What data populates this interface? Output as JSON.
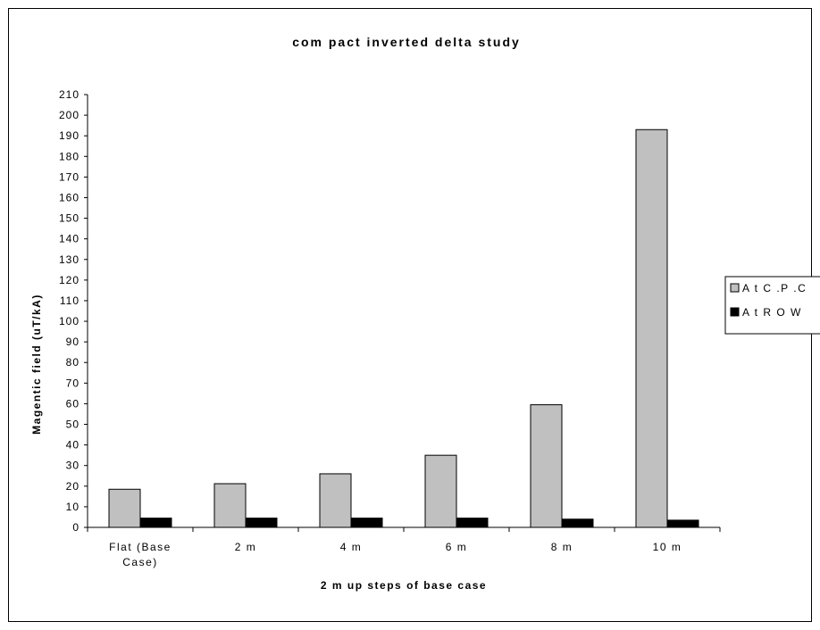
{
  "chart_data": {
    "type": "bar",
    "title": "com pact inverted delta study",
    "xlabel": "2 m up steps of base case",
    "ylabel": "Magentic field (uT/kA)",
    "categories": [
      "Flat (Base Case)",
      "2 m",
      "4 m",
      "6 m",
      "8 m",
      "10 m"
    ],
    "category_lines": [
      [
        "Flat (Base",
        "Case)"
      ],
      [
        "2 m"
      ],
      [
        "4 m"
      ],
      [
        "6 m"
      ],
      [
        "8 m"
      ],
      [
        "10 m"
      ]
    ],
    "ylim": [
      0,
      210
    ],
    "ytick_step": 10,
    "grid": false,
    "legend_position": "right",
    "series": [
      {
        "name": "A t C .P .C",
        "color": "#c0c0c0",
        "values": [
          18.5,
          21.2,
          26,
          35,
          59.5,
          193
        ]
      },
      {
        "name": "A t R O W",
        "color": "#000000",
        "values": [
          4.5,
          4.5,
          4.5,
          4.5,
          4,
          3.5
        ]
      }
    ]
  }
}
